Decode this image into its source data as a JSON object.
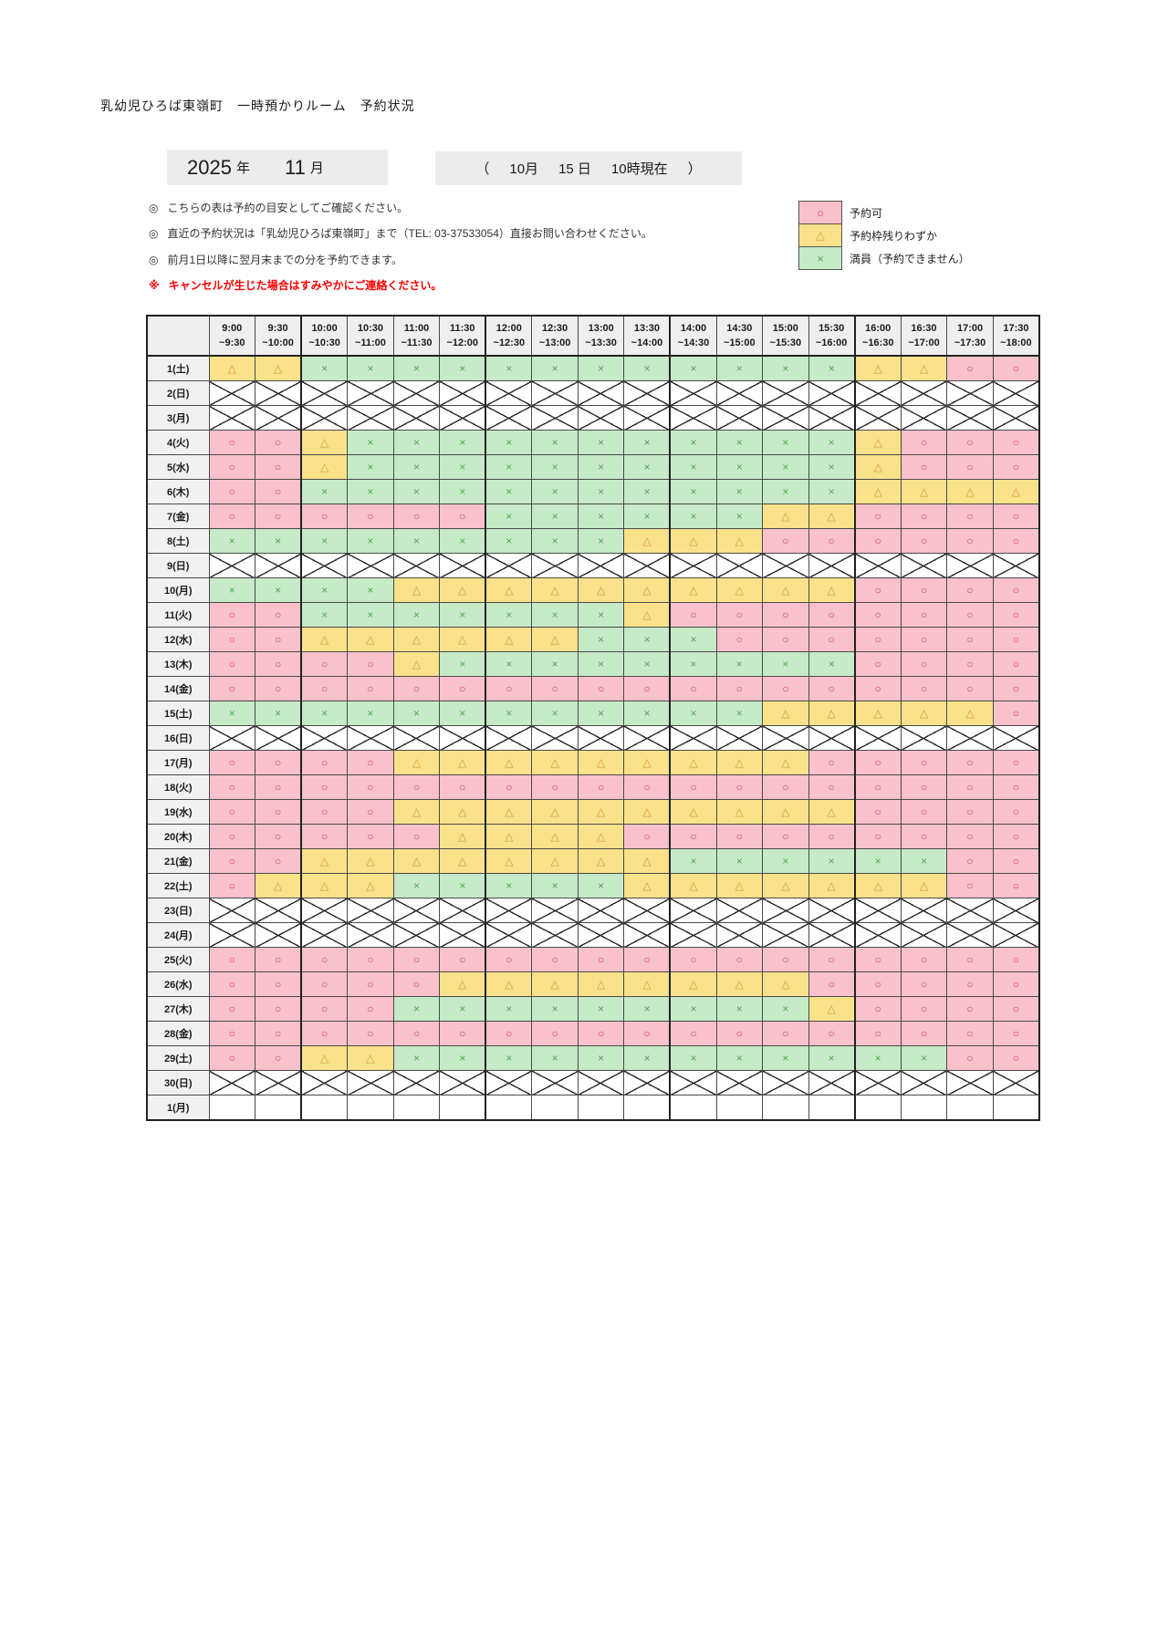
{
  "page": {
    "title": "乳幼児ひろば東嶺町　一時預かりルーム　予約状況"
  },
  "period": {
    "year": "2025",
    "year_suffix": "年",
    "month": "11",
    "month_suffix": "月"
  },
  "as_of": {
    "open": "（",
    "month": "10月",
    "day": "15 日",
    "time": "10時現在",
    "close": "）"
  },
  "notes": [
    {
      "marker": "◎",
      "text": "こちらの表は予約の目安としてご確認ください。"
    },
    {
      "marker": "◎",
      "text": "直近の予約状況は「乳幼児ひろば東嶺町」まで（TEL: 03-37533054）直接お問い合わせください。"
    },
    {
      "marker": "◎",
      "text": "前月1日以降に翌月末までの分を予約できます。"
    }
  ],
  "cancel_note": {
    "marker": "※",
    "text": "キャンセルが生じた場合はすみやかにご連絡ください。"
  },
  "legend": [
    {
      "key": "o",
      "symbol": "○",
      "label": "予約可"
    },
    {
      "key": "t",
      "symbol": "△",
      "label": "予約枠残りわずか"
    },
    {
      "key": "x",
      "symbol": "×",
      "label": "満員（予約できません）"
    }
  ],
  "statuses": {
    "o": {
      "symbol": "○",
      "label": "予約可",
      "bg": "#F8C1CB",
      "fg": "#D94354"
    },
    "t": {
      "symbol": "△",
      "label": "予約枠残りわずか",
      "bg": "#FAE28A",
      "fg": "#D29A38"
    },
    "x": {
      "symbol": "×",
      "label": "満員（予約できません）",
      "bg": "#C7EAC8",
      "fg": "#52A552"
    }
  },
  "table": {
    "time_slots": [
      {
        "start": "9:00",
        "end": "~9:30"
      },
      {
        "start": "9:30",
        "end": "~10:00"
      },
      {
        "start": "10:00",
        "end": "~10:30"
      },
      {
        "start": "10:30",
        "end": "~11:00"
      },
      {
        "start": "11:00",
        "end": "~11:30"
      },
      {
        "start": "11:30",
        "end": "~12:00"
      },
      {
        "start": "12:00",
        "end": "~12:30"
      },
      {
        "start": "12:30",
        "end": "~13:00"
      },
      {
        "start": "13:00",
        "end": "~13:30"
      },
      {
        "start": "13:30",
        "end": "~14:00"
      },
      {
        "start": "14:00",
        "end": "~14:30"
      },
      {
        "start": "14:30",
        "end": "~15:00"
      },
      {
        "start": "15:00",
        "end": "~15:30"
      },
      {
        "start": "15:30",
        "end": "~16:00"
      },
      {
        "start": "16:00",
        "end": "~16:30"
      },
      {
        "start": "16:30",
        "end": "~17:00"
      },
      {
        "start": "17:00",
        "end": "~17:30"
      },
      {
        "start": "17:30",
        "end": "~18:00"
      }
    ],
    "heavy_after_columns": [
      2,
      6,
      10,
      14
    ],
    "rows": [
      {
        "day": "1(土)",
        "type": "open",
        "cells": "ttxxxxxxxxxxxxttoo"
      },
      {
        "day": "2(日)",
        "type": "closed"
      },
      {
        "day": "3(月)",
        "type": "closed"
      },
      {
        "day": "4(火)",
        "type": "open",
        "cells": "ootxxxxxxxxxxxtooo"
      },
      {
        "day": "5(水)",
        "type": "open",
        "cells": "ootxxxxxxxxxxxtooo"
      },
      {
        "day": "6(木)",
        "type": "open",
        "cells": "ooxxxxxxxxxxxxtttt"
      },
      {
        "day": "7(金)",
        "type": "open",
        "cells": "ooooooxxxxxxttoooo"
      },
      {
        "day": "8(土)",
        "type": "open",
        "cells": "xxxxxxxxxtttoooooo"
      },
      {
        "day": "9(日)",
        "type": "closed"
      },
      {
        "day": "10(月)",
        "type": "open",
        "cells": "xxxxttttttttttoooo"
      },
      {
        "day": "11(火)",
        "type": "open",
        "cells": "ooxxxxxxxtoooooooo"
      },
      {
        "day": "12(水)",
        "type": "open",
        "cells": "oottttttxxxooooooo"
      },
      {
        "day": "13(木)",
        "type": "open",
        "cells": "ooootxxxxxxxxxoooo"
      },
      {
        "day": "14(金)",
        "type": "open",
        "cells": "oooooooooooooooooo"
      },
      {
        "day": "15(土)",
        "type": "open",
        "cells": "xxxxxxxxxxxxttttto"
      },
      {
        "day": "16(日)",
        "type": "closed"
      },
      {
        "day": "17(月)",
        "type": "open",
        "cells": "ooootttttttttooooo"
      },
      {
        "day": "18(火)",
        "type": "open",
        "cells": "oooooooooooooooooo"
      },
      {
        "day": "19(水)",
        "type": "open",
        "cells": "oooottttttttttoooo"
      },
      {
        "day": "20(木)",
        "type": "open",
        "cells": "ooooottttooooooooo"
      },
      {
        "day": "21(金)",
        "type": "open",
        "cells": "oottttttttxxxxxxoo"
      },
      {
        "day": "22(土)",
        "type": "open",
        "cells": "otttxxxxxtttttttoo"
      },
      {
        "day": "23(日)",
        "type": "closed"
      },
      {
        "day": "24(月)",
        "type": "closed"
      },
      {
        "day": "25(火)",
        "type": "open",
        "cells": "oooooooooooooooooo"
      },
      {
        "day": "26(水)",
        "type": "open",
        "cells": "ooooottttttttooooo"
      },
      {
        "day": "27(木)",
        "type": "open",
        "cells": "ooooxxxxxxxxxtoooo"
      },
      {
        "day": "28(金)",
        "type": "open",
        "cells": "oooooooooooooooooo"
      },
      {
        "day": "29(土)",
        "type": "open",
        "cells": "oottxxxxxxxxxxxxoo"
      },
      {
        "day": "30(日)",
        "type": "closed"
      },
      {
        "day": "1(月)",
        "type": "empty"
      }
    ]
  }
}
